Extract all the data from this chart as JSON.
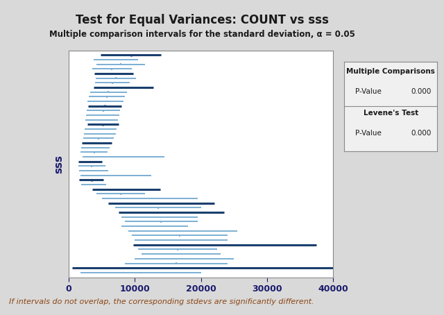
{
  "title": "Test for Equal Variances: COUNT vs sss",
  "subtitle": "Multiple comparison intervals for the standard deviation, α = 0.05",
  "ylabel_label": "sss",
  "xlim": [
    0,
    40000
  ],
  "xticks": [
    0,
    10000,
    20000,
    30000,
    40000
  ],
  "footnote": "If intervals do not overlap, the corresponding stdevs are significantly different.",
  "bg_color": "#d9d9d9",
  "plot_bg_color": "#ffffff",
  "dark_color": "#1a3f6e",
  "light_color": "#7bafd4",
  "legend_title1": "Multiple Comparisons",
  "legend_label1": "P-Value",
  "legend_value1": "0.000",
  "legend_title2": "Levene's Test",
  "legend_label2": "P-Value",
  "legend_value2": "0.000",
  "intervals": [
    {
      "lo": 4800,
      "hi": 14000,
      "dark": true
    },
    {
      "lo": 3800,
      "hi": 10500,
      "dark": false
    },
    {
      "lo": 4200,
      "hi": 11500,
      "dark": false
    },
    {
      "lo": 3500,
      "hi": 9500,
      "dark": false
    },
    {
      "lo": 3900,
      "hi": 9800,
      "dark": true
    },
    {
      "lo": 4100,
      "hi": 10200,
      "dark": false
    },
    {
      "lo": 4000,
      "hi": 9200,
      "dark": false
    },
    {
      "lo": 3800,
      "hi": 12800,
      "dark": true
    },
    {
      "lo": 3200,
      "hi": 8800,
      "dark": false
    },
    {
      "lo": 3000,
      "hi": 8500,
      "dark": false
    },
    {
      "lo": 2800,
      "hi": 8300,
      "dark": false
    },
    {
      "lo": 2900,
      "hi": 8000,
      "dark": true
    },
    {
      "lo": 2700,
      "hi": 7800,
      "dark": false
    },
    {
      "lo": 2600,
      "hi": 7600,
      "dark": false
    },
    {
      "lo": 2500,
      "hi": 7400,
      "dark": false
    },
    {
      "lo": 2800,
      "hi": 7500,
      "dark": true
    },
    {
      "lo": 2400,
      "hi": 7200,
      "dark": false
    },
    {
      "lo": 2300,
      "hi": 7100,
      "dark": false
    },
    {
      "lo": 2200,
      "hi": 6800,
      "dark": false
    },
    {
      "lo": 2000,
      "hi": 6500,
      "dark": true
    },
    {
      "lo": 1900,
      "hi": 6200,
      "dark": false
    },
    {
      "lo": 1800,
      "hi": 5900,
      "dark": false
    },
    {
      "lo": 2100,
      "hi": 14500,
      "dark": false
    },
    {
      "lo": 1500,
      "hi": 5000,
      "dark": true
    },
    {
      "lo": 1400,
      "hi": 5500,
      "dark": false
    },
    {
      "lo": 1600,
      "hi": 6000,
      "dark": false
    },
    {
      "lo": 1800,
      "hi": 12500,
      "dark": false
    },
    {
      "lo": 1600,
      "hi": 5200,
      "dark": true
    },
    {
      "lo": 1900,
      "hi": 5600,
      "dark": false
    },
    {
      "lo": 3500,
      "hi": 13800,
      "dark": true
    },
    {
      "lo": 4200,
      "hi": 11500,
      "dark": false
    },
    {
      "lo": 5000,
      "hi": 19500,
      "dark": false
    },
    {
      "lo": 6000,
      "hi": 22000,
      "dark": true
    },
    {
      "lo": 7000,
      "hi": 20000,
      "dark": false
    },
    {
      "lo": 7500,
      "hi": 23500,
      "dark": true
    },
    {
      "lo": 8000,
      "hi": 19500,
      "dark": false
    },
    {
      "lo": 8500,
      "hi": 19500,
      "dark": false
    },
    {
      "lo": 8000,
      "hi": 18000,
      "dark": false
    },
    {
      "lo": 9000,
      "hi": 25500,
      "dark": false
    },
    {
      "lo": 9500,
      "hi": 24000,
      "dark": false
    },
    {
      "lo": 10000,
      "hi": 24000,
      "dark": false
    },
    {
      "lo": 9800,
      "hi": 37500,
      "dark": true
    },
    {
      "lo": 10500,
      "hi": 22500,
      "dark": false
    },
    {
      "lo": 11000,
      "hi": 23000,
      "dark": false
    },
    {
      "lo": 10000,
      "hi": 25000,
      "dark": false
    },
    {
      "lo": 8500,
      "hi": 24000,
      "dark": false
    },
    {
      "lo": 500,
      "hi": 40000,
      "dark": true
    },
    {
      "lo": 1800,
      "hi": 20000,
      "dark": false
    }
  ]
}
